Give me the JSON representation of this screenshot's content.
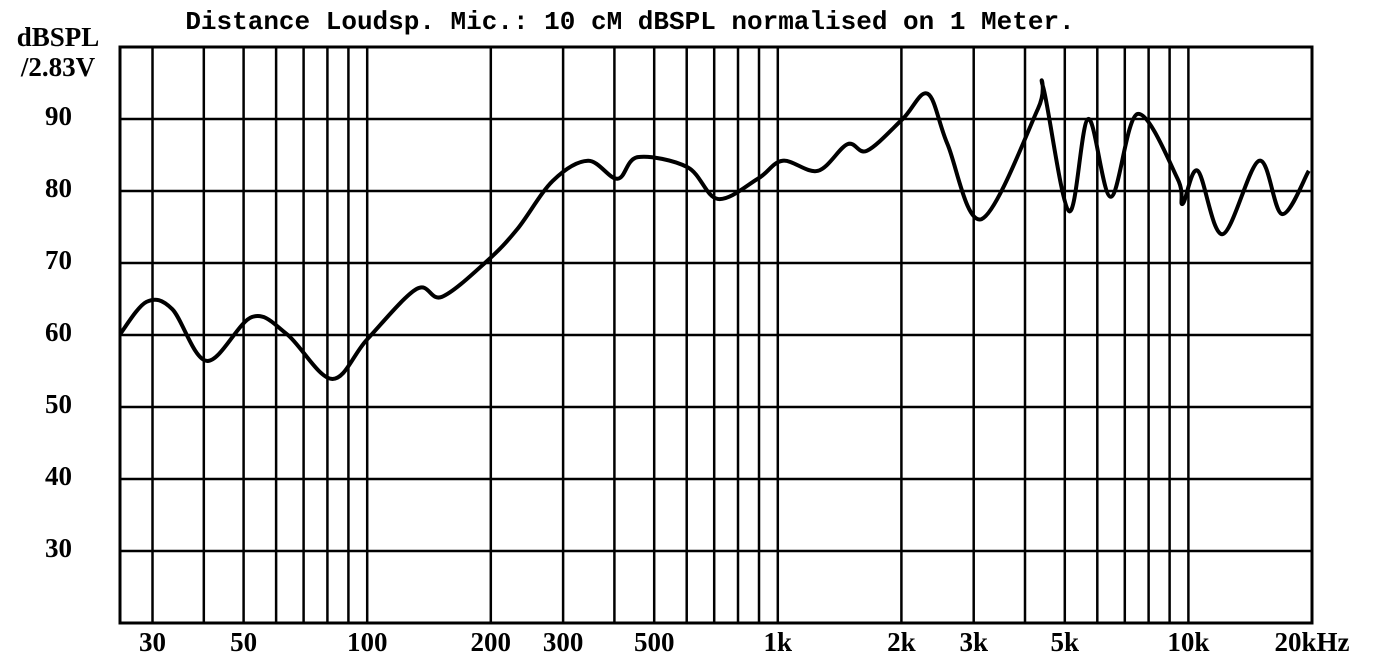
{
  "chart_data": {
    "type": "line",
    "title": "Distance Loudsp. Mic.: 10 cM dBSPL normalised on 1 Meter.",
    "y_label": [
      "dBSPL",
      "/2.83V"
    ],
    "x_scale": "log",
    "xlim": [
      25,
      20000
    ],
    "ylim": [
      20,
      100
    ],
    "yticks": [
      30,
      40,
      50,
      60,
      70,
      80,
      90
    ],
    "xticks": [
      30,
      50,
      100,
      200,
      300,
      500,
      {
        "value": 1000,
        "label": "1k"
      },
      {
        "value": 2000,
        "label": "2k"
      },
      {
        "value": 3000,
        "label": "3k"
      },
      {
        "value": 5000,
        "label": "5k"
      },
      {
        "value": 10000,
        "label": "10k"
      },
      {
        "value": 20000,
        "label": "20kHz"
      }
    ],
    "x_minor_ticks": [
      40,
      60,
      70,
      80,
      90,
      400,
      600,
      700,
      800,
      900,
      4000,
      6000,
      7000,
      8000,
      9000
    ],
    "grid": true,
    "series": [
      {
        "color": "#000000",
        "x": [
          25,
          29,
          33.5,
          40.7,
          52.4,
          63.8,
          82,
          100,
          132,
          152,
          196,
          232,
          283,
          345,
          407,
          456,
          603,
          714,
          894,
          1028,
          1252,
          1478,
          1650,
          2014,
          2318,
          2590,
          3136,
          4300,
          4430,
          5120,
          5700,
          6475,
          7520,
          9410,
          9680,
          10540,
          12110,
          14870,
          16900,
          19640
        ],
        "values": [
          60.1,
          64.6,
          63.6,
          56.4,
          62.5,
          60.1,
          53.9,
          59.4,
          66.4,
          65.3,
          70.3,
          74.7,
          81.4,
          84.2,
          81.7,
          84.7,
          83.3,
          78.9,
          81.7,
          84.2,
          82.8,
          86.5,
          85.6,
          90,
          93.5,
          86.5,
          76.1,
          91.4,
          94.4,
          77.2,
          90,
          79.2,
          90.7,
          81.7,
          78.2,
          82.8,
          74,
          84.2,
          76.8,
          82.8
        ]
      }
    ]
  }
}
